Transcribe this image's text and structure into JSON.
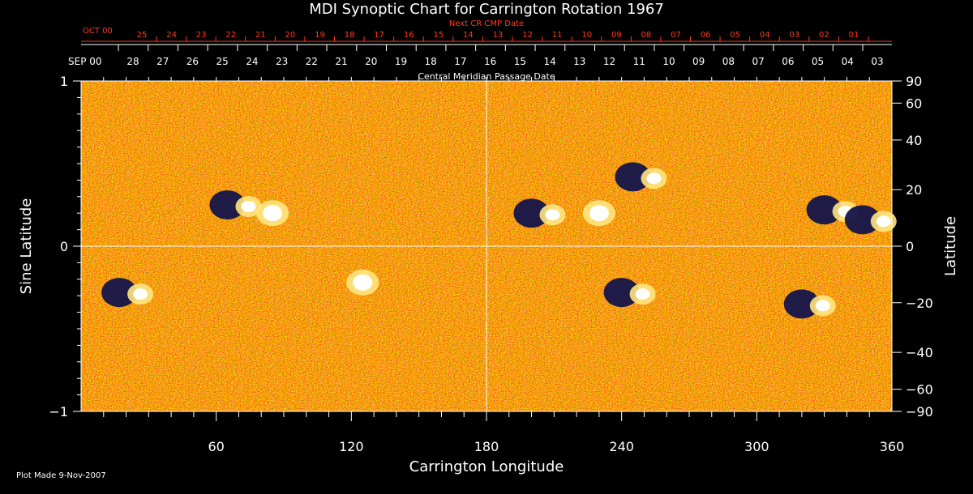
{
  "chart_data": {
    "type": "heatmap",
    "title": "MDI Synoptic Chart for Carrington Rotation 1967",
    "xlabel": "Carrington Longitude",
    "ylabel_left": "Sine Latitude",
    "ylabel_right": "Latitude",
    "xlim": [
      0,
      360
    ],
    "ylim_sine": [
      -1,
      1
    ],
    "x_ticks": [
      "60",
      "120",
      "180",
      "240",
      "300",
      "360"
    ],
    "x_tick_values": [
      60,
      120,
      180,
      240,
      300,
      360
    ],
    "y_left_ticks": [
      {
        "value": 1,
        "label": "1"
      },
      {
        "value": 0,
        "label": "0"
      },
      {
        "value": -1,
        "label": "−1"
      }
    ],
    "y_right_ticks": [
      {
        "deg": 90,
        "label": "90"
      },
      {
        "deg": 60,
        "label": "60"
      },
      {
        "deg": 40,
        "label": "40"
      },
      {
        "deg": 20,
        "label": "20"
      },
      {
        "deg": 0,
        "label": "0"
      },
      {
        "deg": -20,
        "label": "−20"
      },
      {
        "deg": -40,
        "label": "−40"
      },
      {
        "deg": -60,
        "label": "−60"
      },
      {
        "deg": -90,
        "label": "−90"
      }
    ],
    "top_axis_label": "Central Meridian Passage Date",
    "top_axis_month": "SEP 00",
    "top_axis_dates": [
      "28",
      "27",
      "26",
      "25",
      "24",
      "23",
      "22",
      "21",
      "20",
      "19",
      "18",
      "17",
      "16",
      "15",
      "14",
      "13",
      "12",
      "11",
      "10",
      "09",
      "08",
      "07",
      "06",
      "05",
      "04",
      "03"
    ],
    "next_axis_label": "Next CR CMP Date",
    "next_axis_month": "OCT 00",
    "next_axis_dates": [
      "25",
      "24",
      "23",
      "22",
      "21",
      "20",
      "19",
      "18",
      "17",
      "16",
      "15",
      "14",
      "13",
      "12",
      "11",
      "10",
      "09",
      "08",
      "07",
      "06",
      "05",
      "04",
      "03",
      "02",
      "01"
    ],
    "grid": "crosshair at longitude 180 and latitude 0",
    "colormap": [
      "#000033",
      "#1a1a66",
      "#b31a00",
      "#ff4d00",
      "#ff8000",
      "#ffcc33",
      "#ffffff"
    ],
    "active_regions": [
      {
        "lon": 70,
        "sinlat": 0.25,
        "polarity": "mixed"
      },
      {
        "lon": 85,
        "sinlat": 0.2,
        "polarity": "positive"
      },
      {
        "lon": 22,
        "sinlat": -0.28,
        "polarity": "mixed"
      },
      {
        "lon": 125,
        "sinlat": -0.22,
        "polarity": "positive"
      },
      {
        "lon": 205,
        "sinlat": 0.2,
        "polarity": "mixed"
      },
      {
        "lon": 230,
        "sinlat": 0.2,
        "polarity": "positive"
      },
      {
        "lon": 250,
        "sinlat": 0.42,
        "polarity": "mixed"
      },
      {
        "lon": 245,
        "sinlat": -0.28,
        "polarity": "mixed"
      },
      {
        "lon": 335,
        "sinlat": 0.22,
        "polarity": "mixed"
      },
      {
        "lon": 352,
        "sinlat": 0.16,
        "polarity": "mixed"
      },
      {
        "lon": 325,
        "sinlat": -0.35,
        "polarity": "mixed"
      }
    ]
  },
  "footer": {
    "plot_made": "Plot Made  9-Nov-2007"
  }
}
